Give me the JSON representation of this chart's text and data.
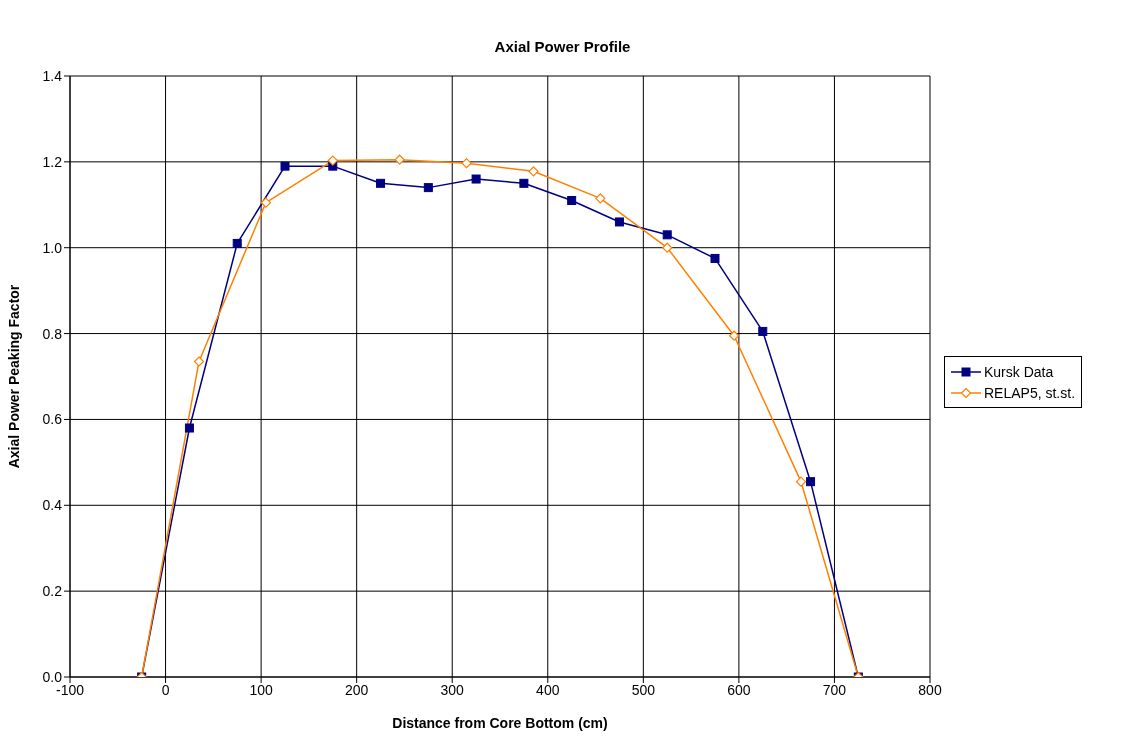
{
  "chart_data": {
    "type": "line",
    "title": "Axial Power Profile",
    "xlabel": "Distance from Core Bottom (cm)",
    "ylabel": "Axial Power Peaking Factor",
    "xlim": [
      -100,
      800
    ],
    "xticks": [
      -100,
      0,
      100,
      200,
      300,
      400,
      500,
      600,
      700,
      800
    ],
    "ylim": [
      0,
      1.4
    ],
    "yticks": [
      {
        "value": 0,
        "label": "0.0"
      },
      0.2,
      0.4,
      0.6,
      0.8,
      {
        "value": 1,
        "label": "1.0"
      },
      1.2,
      1.4
    ],
    "grid": true,
    "legend": "right",
    "line_style": "solid",
    "series": [
      {
        "name": "Kursk Data",
        "color": "#000080",
        "marker": "square",
        "x": [
          -25,
          25,
          75,
          125,
          175,
          225,
          275,
          325,
          375,
          425,
          475,
          525,
          575,
          625,
          675,
          725
        ],
        "values": [
          0,
          0.58,
          1.01,
          1.19,
          1.19,
          1.15,
          1.14,
          1.16,
          1.15,
          1.11,
          1.06,
          1.03,
          0.975,
          0.805,
          0.455,
          0
        ]
      },
      {
        "name": "RELAP5, st.st.",
        "color": "#ff8000",
        "marker": "diamond",
        "x": [
          -25,
          35,
          105,
          175,
          245,
          315,
          385,
          455,
          525,
          595,
          665,
          725
        ],
        "values": [
          0,
          0.735,
          1.105,
          1.203,
          1.205,
          1.197,
          1.178,
          1.115,
          1.0,
          0.795,
          0.455,
          0
        ]
      }
    ]
  }
}
